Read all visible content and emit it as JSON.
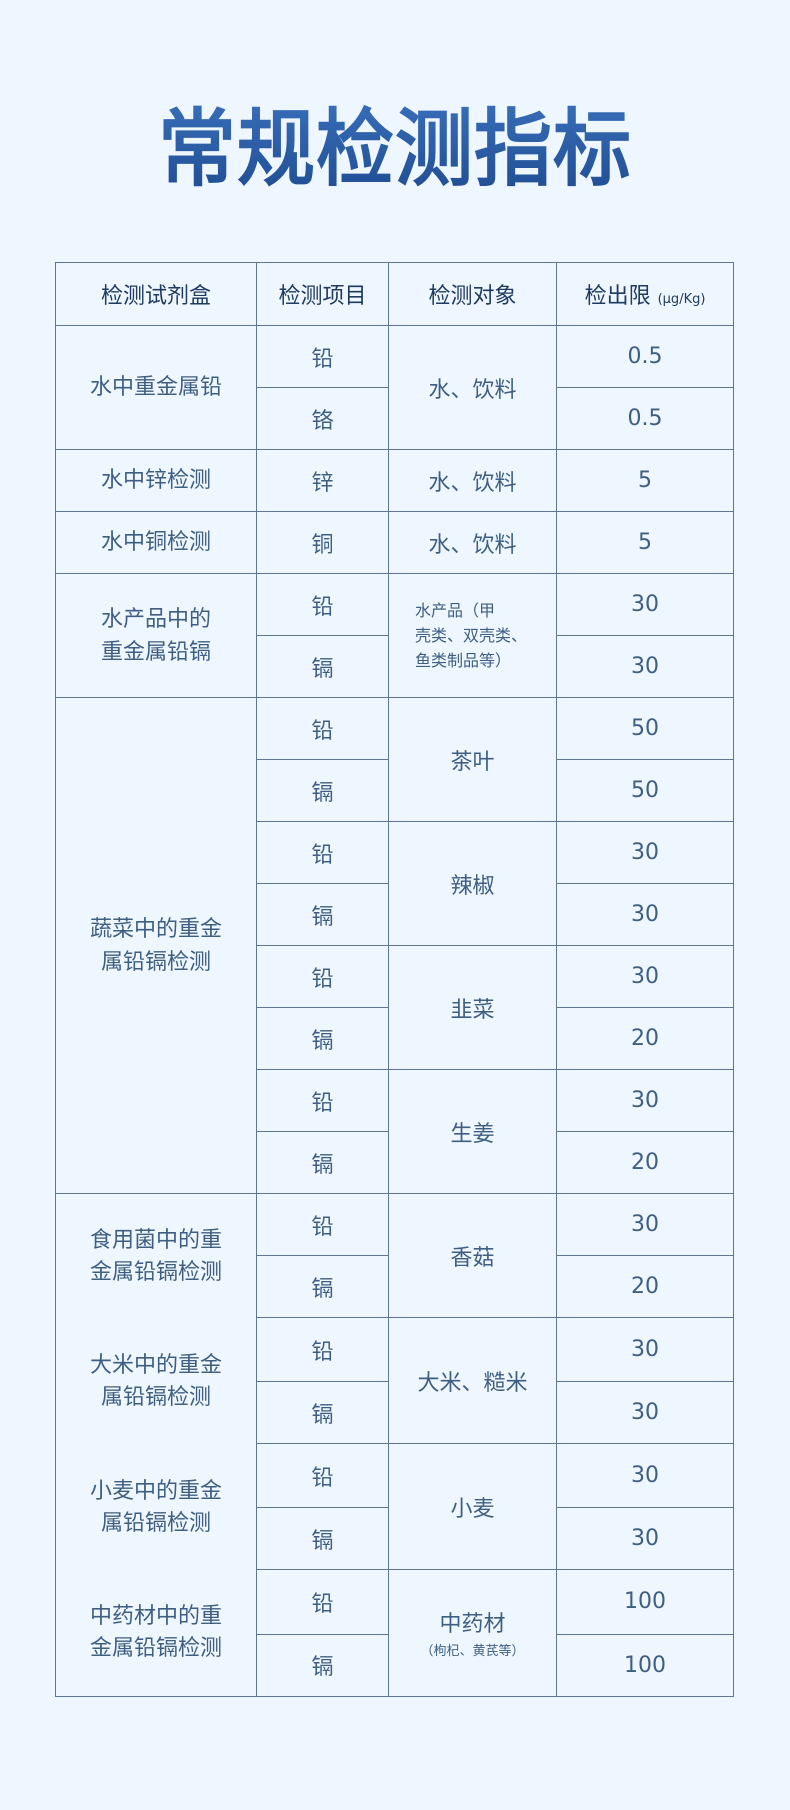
{
  "title": "常规检测指标",
  "header": {
    "kit": "检测试剂盒",
    "item": "检测项目",
    "target": "检测对象",
    "limit": "检出限",
    "unit": "(μg/Kg)"
  },
  "groups": [
    {
      "kits": [
        "水中重金属铅"
      ],
      "targets": [
        {
          "name": "水、饮料",
          "rows": [
            {
              "item": "铅",
              "limit": "0.5"
            },
            {
              "item": "铬",
              "limit": "0.5"
            }
          ]
        }
      ]
    },
    {
      "kits": [
        "水中锌检测"
      ],
      "targets": [
        {
          "name": "水、饮料",
          "rows": [
            {
              "item": "锌",
              "limit": "5"
            }
          ]
        }
      ]
    },
    {
      "kits": [
        "水中铜检测"
      ],
      "targets": [
        {
          "name": "水、饮料",
          "rows": [
            {
              "item": "铜",
              "limit": "5"
            }
          ]
        }
      ]
    },
    {
      "kits": [
        "水产品中的\n重金属铅镉"
      ],
      "targets": [
        {
          "name": "水产品（甲\n壳类、双壳类、\n鱼类制品等）",
          "small": true,
          "rows": [
            {
              "item": "铅",
              "limit": "30"
            },
            {
              "item": "镉",
              "limit": "30"
            }
          ]
        }
      ]
    },
    {
      "kits": [
        "蔬菜中的重金\n属铅镉检测"
      ],
      "targets": [
        {
          "name": "茶叶",
          "rows": [
            {
              "item": "铅",
              "limit": "50"
            },
            {
              "item": "镉",
              "limit": "50"
            }
          ]
        },
        {
          "name": "辣椒",
          "rows": [
            {
              "item": "铅",
              "limit": "30"
            },
            {
              "item": "镉",
              "limit": "30"
            }
          ]
        },
        {
          "name": "韭菜",
          "rows": [
            {
              "item": "铅",
              "limit": "30"
            },
            {
              "item": "镉",
              "limit": "20"
            }
          ]
        },
        {
          "name": "生姜",
          "rows": [
            {
              "item": "铅",
              "limit": "30"
            },
            {
              "item": "镉",
              "limit": "20"
            }
          ]
        }
      ]
    },
    {
      "kits": [
        "食用菌中的重\n金属铅镉检测",
        "大米中的重金\n属铅镉检测",
        "小麦中的重金\n属铅镉检测",
        "中药材中的重\n金属铅镉检测"
      ],
      "targets": [
        {
          "name": "香菇",
          "rows": [
            {
              "item": "铅",
              "limit": "30"
            },
            {
              "item": "镉",
              "limit": "20"
            }
          ]
        },
        {
          "name": "大米、糙米",
          "rows": [
            {
              "item": "铅",
              "limit": "30"
            },
            {
              "item": "镉",
              "limit": "30"
            }
          ]
        },
        {
          "name": "小麦",
          "rows": [
            {
              "item": "铅",
              "limit": "30"
            },
            {
              "item": "镉",
              "limit": "30"
            }
          ]
        },
        {
          "name": "中药材",
          "note": "（枸杞、黄芪等）",
          "rows": [
            {
              "item": "铅",
              "limit": "100"
            },
            {
              "item": "镉",
              "limit": "100"
            }
          ]
        }
      ]
    }
  ],
  "colors": {
    "background": "#eef6ff",
    "title": "#1d4a8e",
    "border": "#5f7594",
    "text": "#3f5f82"
  }
}
